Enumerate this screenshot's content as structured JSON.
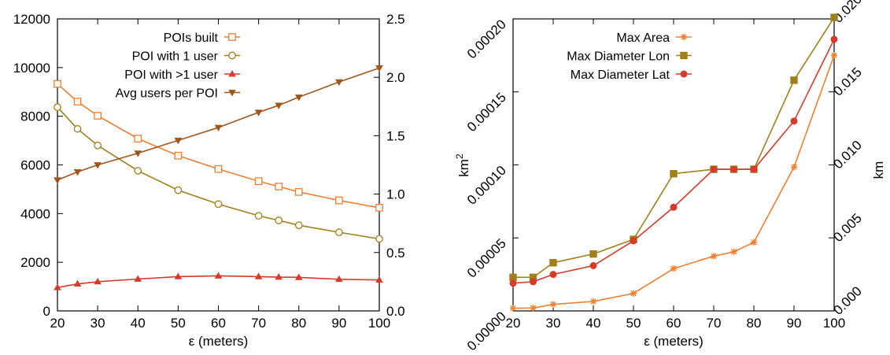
{
  "chart_data": [
    {
      "type": "line",
      "xlabel": "ε (meters)",
      "ylabel": "",
      "y2label": "",
      "x": [
        20,
        25,
        30,
        40,
        50,
        60,
        70,
        75,
        80,
        90,
        100
      ],
      "x_ticks": [
        "20",
        "30",
        "40",
        "50",
        "60",
        "70",
        "80",
        "90",
        "100"
      ],
      "xlim": [
        20,
        100
      ],
      "ylim": [
        0,
        12000
      ],
      "y_ticks": [
        "0",
        "2000",
        "4000",
        "6000",
        "8000",
        "10000",
        "12000"
      ],
      "y2lim": [
        0,
        2.5
      ],
      "y2_ticks": [
        "0.0",
        "0.5",
        "1.0",
        "1.5",
        "2.0",
        "2.5"
      ],
      "grid": false,
      "legend_position": "top-right",
      "series": [
        {
          "name": "POIs built",
          "axis": "left",
          "marker": "open-square",
          "color": "#f07f2e",
          "values": [
            9330,
            8600,
            8020,
            7080,
            6380,
            5830,
            5330,
            5110,
            4890,
            4540,
            4240
          ]
        },
        {
          "name": "POI with 1 user",
          "axis": "left",
          "marker": "open-circle",
          "color": "#a0801a",
          "values": [
            8370,
            7480,
            6800,
            5760,
            4960,
            4390,
            3910,
            3720,
            3520,
            3230,
            2960
          ]
        },
        {
          "name": "POI with >1 user",
          "axis": "left",
          "marker": "triangle-up",
          "color": "#d63a2a",
          "values": [
            960,
            1110,
            1200,
            1310,
            1410,
            1440,
            1410,
            1390,
            1380,
            1300,
            1270
          ]
        },
        {
          "name": "Avg users per POI",
          "axis": "right",
          "marker": "triangle-down",
          "color": "#a0561b",
          "values": [
            1.12,
            1.19,
            1.25,
            1.35,
            1.46,
            1.57,
            1.7,
            1.76,
            1.83,
            1.96,
            2.08
          ]
        }
      ]
    },
    {
      "type": "line",
      "xlabel": "ε (meters)",
      "ylabel": "km",
      "ylabel_sup": "2",
      "y2label": "km",
      "x": [
        20,
        25,
        30,
        40,
        50,
        60,
        70,
        75,
        80,
        90,
        100
      ],
      "x_ticks": [
        "20",
        "30",
        "40",
        "50",
        "60",
        "70",
        "80",
        "90",
        "100"
      ],
      "xlim": [
        20,
        100
      ],
      "ylim": [
        0,
        0.0002
      ],
      "y_ticks": [
        "0.00000",
        "0.00005",
        "0.00010",
        "0.00015",
        "0.00020"
      ],
      "y2lim": [
        0,
        0.02
      ],
      "y2_ticks": [
        "0.000",
        "0.005",
        "0.010",
        "0.015",
        "0.020"
      ],
      "grid": false,
      "legend_position": "top-left",
      "series": [
        {
          "name": "Max Area",
          "axis": "left",
          "marker": "star",
          "color": "#f07f2e",
          "values": [
            1.8e-06,
            2e-06,
            4.5e-06,
            6.5e-06,
            1.2e-05,
            2.9e-05,
            3.75e-05,
            4.05e-05,
            4.7e-05,
            9.85e-05,
            0.000175
          ]
        },
        {
          "name": "Max Diameter Lon",
          "axis": "right",
          "marker": "filled-square",
          "color": "#a0801a",
          "values": [
            0.0023,
            0.0023,
            0.0033,
            0.0039,
            0.0049,
            0.0094,
            0.0097,
            0.0097,
            0.0097,
            0.0158,
            0.0201
          ]
        },
        {
          "name": "Max Diameter Lat",
          "axis": "right",
          "marker": "filled-circle",
          "color": "#d63a2a",
          "values": [
            0.0019,
            0.002,
            0.0025,
            0.0031,
            0.0048,
            0.0071,
            0.0097,
            0.0097,
            0.0097,
            0.013,
            0.0186
          ]
        }
      ]
    }
  ]
}
